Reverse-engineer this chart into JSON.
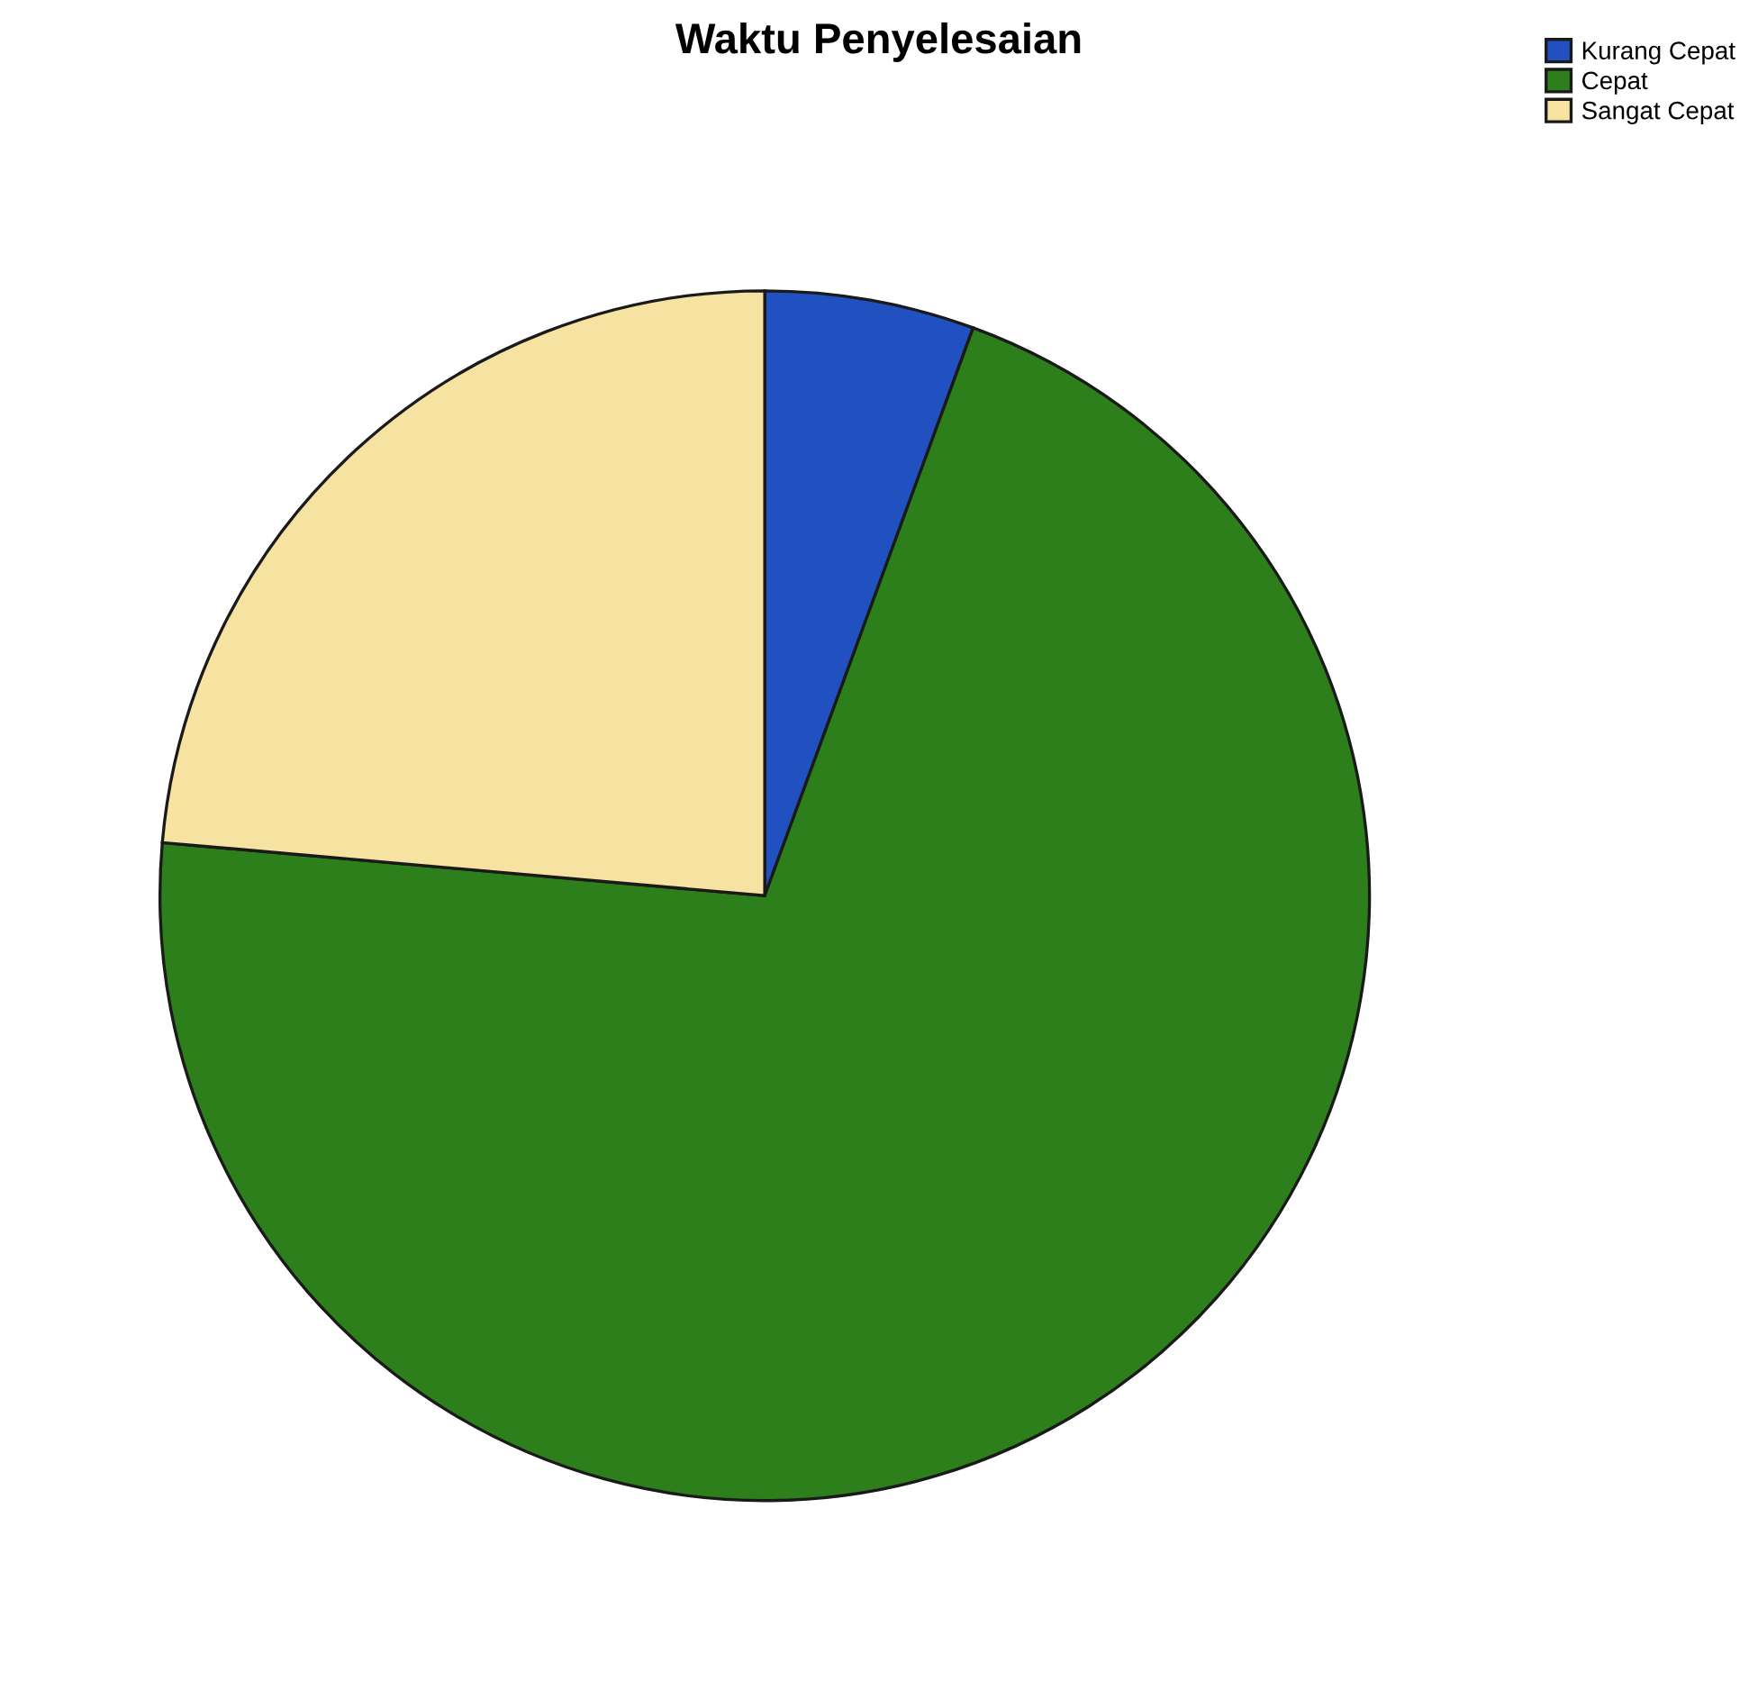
{
  "chart_data": {
    "type": "pie",
    "title": "Waktu Penyelesaian",
    "categories": [
      "Kurang Cepat",
      "Cepat",
      "Sangat Cepat"
    ],
    "values": [
      5.6,
      70.8,
      23.6
    ],
    "colors": [
      "#2150c0",
      "#2d7f1c",
      "#f6e3a2"
    ],
    "legend": "top right"
  }
}
